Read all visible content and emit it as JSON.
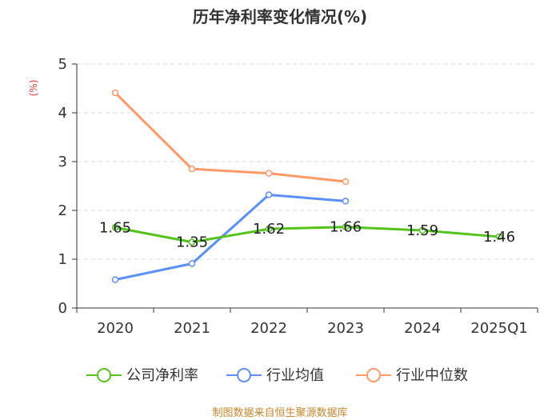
{
  "chart_data": {
    "type": "line",
    "title": "历年净利率变化情况(%)",
    "ylabel": "(%)",
    "categories": [
      "2020",
      "2021",
      "2022",
      "2023",
      "2024",
      "2025Q1"
    ],
    "ylim": [
      0,
      5
    ],
    "yticks": [
      0,
      1,
      2,
      3,
      4,
      5
    ],
    "grid": "horizontal dashed",
    "legend_position": "bottom",
    "series": [
      {
        "name": "公司净利率",
        "color": "#52c41a",
        "values": [
          1.65,
          1.35,
          1.62,
          1.66,
          1.59,
          1.46
        ],
        "labels": [
          "1.65",
          "1.35",
          "1.62",
          "1.66",
          "1.59",
          "1.46"
        ]
      },
      {
        "name": "行业均值",
        "color": "#5b8ff9",
        "values": [
          0.58,
          0.91,
          2.32,
          2.19,
          null,
          null
        ]
      },
      {
        "name": "行业中位数",
        "color": "#ff9966",
        "values": [
          4.41,
          2.85,
          2.76,
          2.59,
          null,
          null
        ]
      }
    ]
  },
  "source": "制图数据来自恒生聚源数据库"
}
